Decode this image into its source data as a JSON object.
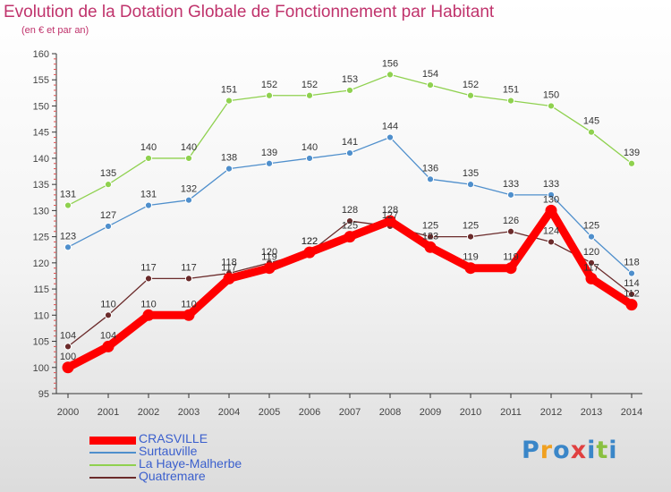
{
  "chart_data": {
    "type": "line",
    "title": "Evolution de la Dotation Globale de Fonctionnement par Habitant",
    "subtitle": "(en € et par an)",
    "x": [
      "2000",
      "2001",
      "2002",
      "2003",
      "2004",
      "2005",
      "2006",
      "2007",
      "2008",
      "2009",
      "2010",
      "2011",
      "2012",
      "2013",
      "2014"
    ],
    "ylim": [
      95,
      160
    ],
    "yticks": [
      95,
      100,
      105,
      110,
      115,
      120,
      125,
      130,
      135,
      140,
      145,
      150,
      155,
      160
    ],
    "grid": false,
    "legend_position": "bottom-left",
    "series": [
      {
        "name": "CRASVILLE",
        "color": "#ff0000",
        "values": [
          100,
          104,
          110,
          110,
          117,
          119,
          122,
          125,
          128,
          123,
          119,
          119,
          130,
          117,
          112
        ]
      },
      {
        "name": "Surtauville",
        "color": "#4f8fcc",
        "values": [
          123,
          127,
          131,
          132,
          138,
          139,
          140,
          141,
          144,
          136,
          135,
          133,
          133,
          125,
          118
        ]
      },
      {
        "name": "La Haye-Malherbe",
        "color": "#8fd14f",
        "values": [
          131,
          135,
          140,
          140,
          151,
          152,
          152,
          153,
          156,
          154,
          152,
          151,
          150,
          145,
          139
        ]
      },
      {
        "name": "Quatremare",
        "color": "#6b2b2b",
        "values": [
          104,
          110,
          117,
          117,
          118,
          120,
          122,
          128,
          127,
          125,
          125,
          126,
          124,
          120,
          114
        ]
      }
    ]
  },
  "logo": {
    "letters": [
      "P",
      "r",
      "o",
      "x",
      "i",
      "t",
      "i"
    ],
    "colors": [
      "#3a86c8",
      "#f0a020",
      "#3a86c8",
      "#e04040",
      "#3a86c8",
      "#8ac040",
      "#3a86c8"
    ]
  }
}
